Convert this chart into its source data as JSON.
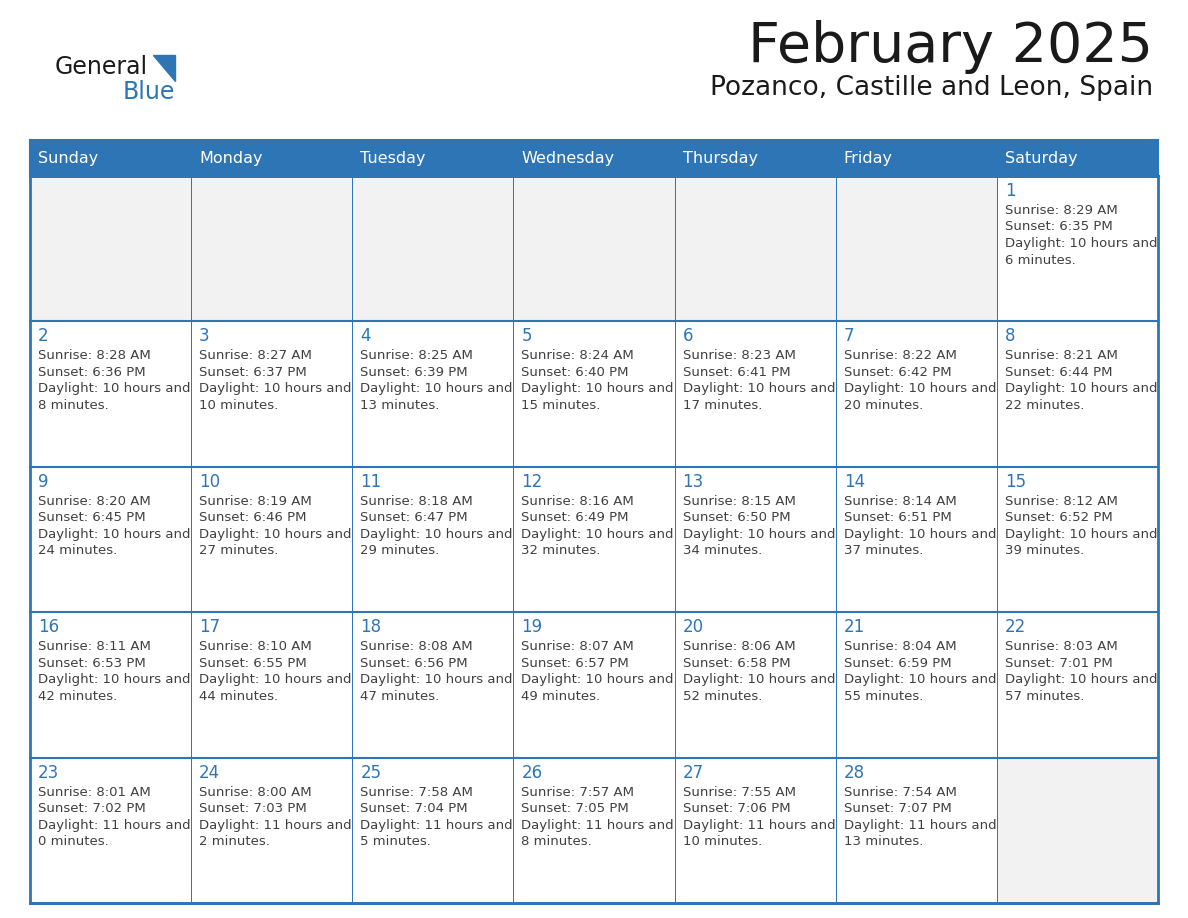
{
  "title": "February 2025",
  "subtitle": "Pozanco, Castille and Leon, Spain",
  "header_bg": "#2E75B6",
  "header_text_color": "#FFFFFF",
  "cell_bg_white": "#FFFFFF",
  "cell_bg_gray": "#F2F2F2",
  "border_color": "#2E75B6",
  "border_color_light": "#AAAAAA",
  "day_names": [
    "Sunday",
    "Monday",
    "Tuesday",
    "Wednesday",
    "Thursday",
    "Friday",
    "Saturday"
  ],
  "title_color": "#1a1a1a",
  "subtitle_color": "#1a1a1a",
  "day_number_color": "#2E75B6",
  "cell_text_color": "#404040",
  "logo_general_color": "#1a1a1a",
  "logo_blue_color": "#2E75B6",
  "calendar": [
    [
      null,
      null,
      null,
      null,
      null,
      null,
      {
        "day": 1,
        "sunrise": "8:29 AM",
        "sunset": "6:35 PM",
        "daylight": "10 hours and 6 minutes."
      }
    ],
    [
      {
        "day": 2,
        "sunrise": "8:28 AM",
        "sunset": "6:36 PM",
        "daylight": "10 hours and 8 minutes."
      },
      {
        "day": 3,
        "sunrise": "8:27 AM",
        "sunset": "6:37 PM",
        "daylight": "10 hours and 10 minutes."
      },
      {
        "day": 4,
        "sunrise": "8:25 AM",
        "sunset": "6:39 PM",
        "daylight": "10 hours and 13 minutes."
      },
      {
        "day": 5,
        "sunrise": "8:24 AM",
        "sunset": "6:40 PM",
        "daylight": "10 hours and 15 minutes."
      },
      {
        "day": 6,
        "sunrise": "8:23 AM",
        "sunset": "6:41 PM",
        "daylight": "10 hours and 17 minutes."
      },
      {
        "day": 7,
        "sunrise": "8:22 AM",
        "sunset": "6:42 PM",
        "daylight": "10 hours and 20 minutes."
      },
      {
        "day": 8,
        "sunrise": "8:21 AM",
        "sunset": "6:44 PM",
        "daylight": "10 hours and 22 minutes."
      }
    ],
    [
      {
        "day": 9,
        "sunrise": "8:20 AM",
        "sunset": "6:45 PM",
        "daylight": "10 hours and 24 minutes."
      },
      {
        "day": 10,
        "sunrise": "8:19 AM",
        "sunset": "6:46 PM",
        "daylight": "10 hours and 27 minutes."
      },
      {
        "day": 11,
        "sunrise": "8:18 AM",
        "sunset": "6:47 PM",
        "daylight": "10 hours and 29 minutes."
      },
      {
        "day": 12,
        "sunrise": "8:16 AM",
        "sunset": "6:49 PM",
        "daylight": "10 hours and 32 minutes."
      },
      {
        "day": 13,
        "sunrise": "8:15 AM",
        "sunset": "6:50 PM",
        "daylight": "10 hours and 34 minutes."
      },
      {
        "day": 14,
        "sunrise": "8:14 AM",
        "sunset": "6:51 PM",
        "daylight": "10 hours and 37 minutes."
      },
      {
        "day": 15,
        "sunrise": "8:12 AM",
        "sunset": "6:52 PM",
        "daylight": "10 hours and 39 minutes."
      }
    ],
    [
      {
        "day": 16,
        "sunrise": "8:11 AM",
        "sunset": "6:53 PM",
        "daylight": "10 hours and 42 minutes."
      },
      {
        "day": 17,
        "sunrise": "8:10 AM",
        "sunset": "6:55 PM",
        "daylight": "10 hours and 44 minutes."
      },
      {
        "day": 18,
        "sunrise": "8:08 AM",
        "sunset": "6:56 PM",
        "daylight": "10 hours and 47 minutes."
      },
      {
        "day": 19,
        "sunrise": "8:07 AM",
        "sunset": "6:57 PM",
        "daylight": "10 hours and 49 minutes."
      },
      {
        "day": 20,
        "sunrise": "8:06 AM",
        "sunset": "6:58 PM",
        "daylight": "10 hours and 52 minutes."
      },
      {
        "day": 21,
        "sunrise": "8:04 AM",
        "sunset": "6:59 PM",
        "daylight": "10 hours and 55 minutes."
      },
      {
        "day": 22,
        "sunrise": "8:03 AM",
        "sunset": "7:01 PM",
        "daylight": "10 hours and 57 minutes."
      }
    ],
    [
      {
        "day": 23,
        "sunrise": "8:01 AM",
        "sunset": "7:02 PM",
        "daylight": "11 hours and 0 minutes."
      },
      {
        "day": 24,
        "sunrise": "8:00 AM",
        "sunset": "7:03 PM",
        "daylight": "11 hours and 2 minutes."
      },
      {
        "day": 25,
        "sunrise": "7:58 AM",
        "sunset": "7:04 PM",
        "daylight": "11 hours and 5 minutes."
      },
      {
        "day": 26,
        "sunrise": "7:57 AM",
        "sunset": "7:05 PM",
        "daylight": "11 hours and 8 minutes."
      },
      {
        "day": 27,
        "sunrise": "7:55 AM",
        "sunset": "7:06 PM",
        "daylight": "11 hours and 10 minutes."
      },
      {
        "day": 28,
        "sunrise": "7:54 AM",
        "sunset": "7:07 PM",
        "daylight": "11 hours and 13 minutes."
      },
      null
    ]
  ]
}
